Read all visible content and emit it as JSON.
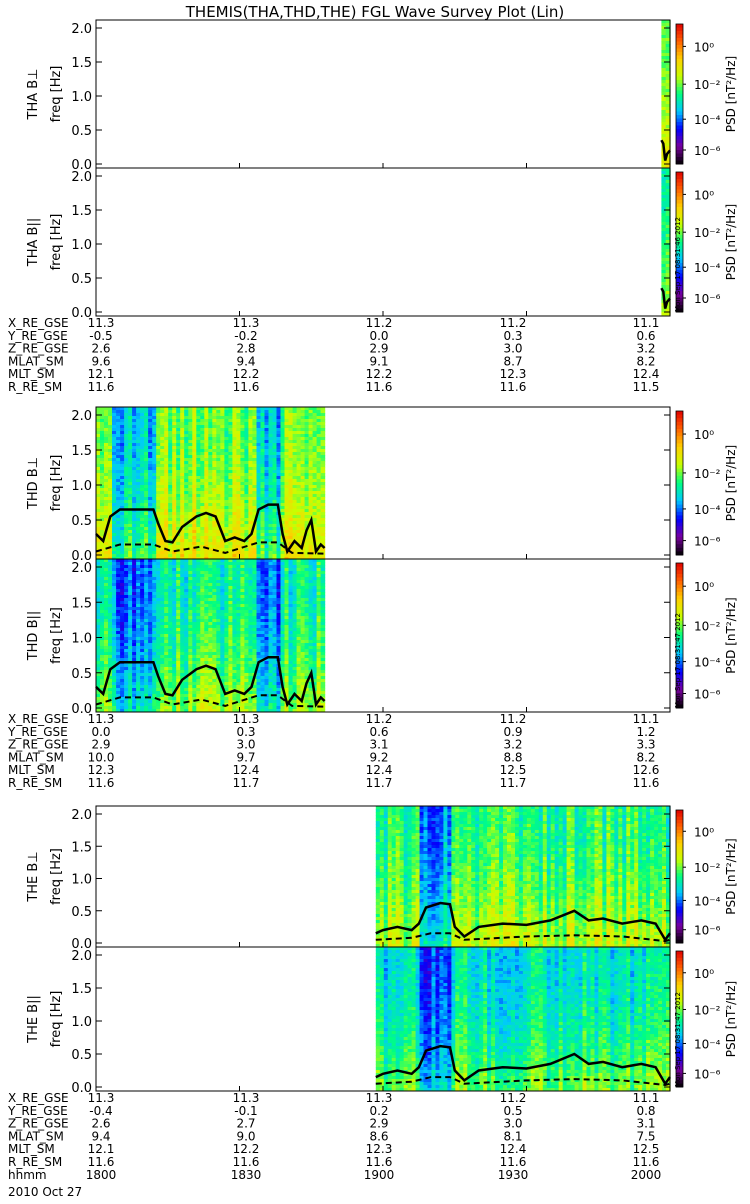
{
  "title": "THEMIS(THA,THD,THE) FGL Wave Survey Plot (Lin)",
  "colorbar": {
    "label": "PSD [nT²/Hz]",
    "ticks": [
      "10⁰",
      "10⁻²",
      "10⁻⁴",
      "10⁻⁶"
    ]
  },
  "panels": [
    {
      "label": "THA B⊥",
      "ylabel": "freq [Hz]",
      "stamp": ""
    },
    {
      "label": "THA B||",
      "ylabel": "freq [Hz]",
      "stamp": "Mon Sep 17 08:31:46 2012"
    },
    {
      "label": "THD B⊥",
      "ylabel": "freq [Hz]",
      "stamp": ""
    },
    {
      "label": "THD B||",
      "ylabel": "freq [Hz]",
      "stamp": "Mon Sep 17 08:31:47 2012"
    },
    {
      "label": "THE B⊥",
      "ylabel": "freq [Hz]",
      "stamp": ""
    },
    {
      "label": "THE B||",
      "ylabel": "freq [Hz]",
      "stamp": "Mon Sep 17 08:31:47 2012"
    }
  ],
  "ephemeris": [
    {
      "rows": [
        {
          "name": "X_RE_GSE",
          "values": [
            "11.3",
            "11.3",
            "11.2",
            "11.2",
            "11.1"
          ]
        },
        {
          "name": "Y_RE_GSE",
          "values": [
            "-0.5",
            "-0.2",
            "0.0",
            "0.3",
            "0.6"
          ]
        },
        {
          "name": "Z_RE_GSE",
          "values": [
            "2.6",
            "2.8",
            "2.9",
            "3.0",
            "3.2"
          ]
        },
        {
          "name": "MLAT_SM",
          "values": [
            "9.6",
            "9.4",
            "9.1",
            "8.7",
            "8.2"
          ]
        },
        {
          "name": "MLT_SM",
          "values": [
            "12.1",
            "12.2",
            "12.2",
            "12.3",
            "12.4"
          ]
        },
        {
          "name": "R_RE_SM",
          "values": [
            "11.6",
            "11.6",
            "11.6",
            "11.6",
            "11.5"
          ]
        }
      ]
    },
    {
      "rows": [
        {
          "name": "X_RE_GSE",
          "values": [
            "11.3",
            "11.3",
            "11.2",
            "11.2",
            "11.1"
          ]
        },
        {
          "name": "Y_RE_GSE",
          "values": [
            "0.0",
            "0.3",
            "0.6",
            "0.9",
            "1.2"
          ]
        },
        {
          "name": "Z_RE_GSE",
          "values": [
            "2.9",
            "3.0",
            "3.1",
            "3.2",
            "3.3"
          ]
        },
        {
          "name": "MLAT_SM",
          "values": [
            "10.0",
            "9.7",
            "9.2",
            "8.8",
            "8.2"
          ]
        },
        {
          "name": "MLT_SM",
          "values": [
            "12.3",
            "12.4",
            "12.4",
            "12.5",
            "12.6"
          ]
        },
        {
          "name": "R_RE_SM",
          "values": [
            "11.6",
            "11.7",
            "11.7",
            "11.7",
            "11.6"
          ]
        }
      ]
    },
    {
      "rows": [
        {
          "name": "X_RE_GSE",
          "values": [
            "11.3",
            "11.3",
            "11.3",
            "11.2",
            "11.1"
          ]
        },
        {
          "name": "Y_RE_GSE",
          "values": [
            "-0.4",
            "-0.1",
            "0.2",
            "0.5",
            "0.8"
          ]
        },
        {
          "name": "Z_RE_GSE",
          "values": [
            "2.6",
            "2.7",
            "2.9",
            "3.0",
            "3.1"
          ]
        },
        {
          "name": "MLAT_SM",
          "values": [
            "9.4",
            "9.0",
            "8.6",
            "8.1",
            "7.5"
          ]
        },
        {
          "name": "MLT_SM",
          "values": [
            "12.1",
            "12.2",
            "12.3",
            "12.4",
            "12.5"
          ]
        },
        {
          "name": "R_RE_SM",
          "values": [
            "11.6",
            "11.6",
            "11.6",
            "11.6",
            "11.6"
          ]
        },
        {
          "name": "hhmm",
          "values": [
            "1800",
            "1830",
            "1900",
            "1930",
            "2000"
          ]
        }
      ]
    }
  ],
  "date_label": "2010 Oct 27",
  "chart_data": {
    "type": "heatmap",
    "title": "THEMIS(THA,THD,THE) FGL Wave Survey Plot (Lin)",
    "xlabel": "hhmm",
    "x_ticks": [
      "1800",
      "1830",
      "1900",
      "1930",
      "2000"
    ],
    "ylabel": "freq [Hz]",
    "ylim": [
      0,
      2.0
    ],
    "y_ticks": [
      "0.0",
      "0.5",
      "1.0",
      "1.5",
      "2.0"
    ],
    "z_scale": "log",
    "z_label": "PSD [nT²/Hz]",
    "z_range": [
      1e-07,
      10
    ],
    "colormap": [
      "#000000",
      "#7a00a0",
      "#0000ff",
      "#00c8ff",
      "#00ff80",
      "#c8ff00",
      "#ffd000",
      "#ff6000",
      "#e00000"
    ],
    "x_range_min": [
      0,
      120
    ],
    "panels": [
      {
        "name": "THA B⊥",
        "data_start_min": 118.2,
        "data_end_min": 120,
        "level": 4.2,
        "solid_curve": [
          [
            118.2,
            0.35
          ],
          [
            118.6,
            0.3
          ],
          [
            119.0,
            0.05
          ],
          [
            119.4,
            0.15
          ],
          [
            120,
            0.2
          ]
        ],
        "dashed_curve": []
      },
      {
        "name": "THA B||",
        "data_start_min": 118.2,
        "data_end_min": 120,
        "level": 3.6,
        "solid_curve": [
          [
            118.2,
            0.35
          ],
          [
            118.6,
            0.3
          ],
          [
            119.0,
            0.05
          ],
          [
            119.4,
            0.15
          ],
          [
            120,
            0.2
          ]
        ],
        "dashed_curve": []
      },
      {
        "name": "THD B⊥",
        "data_start_min": 0,
        "data_end_min": 47.8,
        "level": 4.5,
        "quiet_intervals_min": [
          [
            3.5,
            12.5
          ],
          [
            33.5,
            38.5
          ]
        ],
        "solid_curve": [
          [
            0,
            0.3
          ],
          [
            1.5,
            0.2
          ],
          [
            3,
            0.55
          ],
          [
            5,
            0.65
          ],
          [
            12,
            0.65
          ],
          [
            13,
            0.45
          ],
          [
            14.5,
            0.2
          ],
          [
            16,
            0.18
          ],
          [
            18,
            0.4
          ],
          [
            21,
            0.55
          ],
          [
            23,
            0.6
          ],
          [
            25,
            0.55
          ],
          [
            27,
            0.2
          ],
          [
            29,
            0.25
          ],
          [
            31,
            0.2
          ],
          [
            32.5,
            0.3
          ],
          [
            34,
            0.65
          ],
          [
            36,
            0.72
          ],
          [
            38,
            0.72
          ],
          [
            39,
            0.3
          ],
          [
            40,
            0.05
          ],
          [
            41.5,
            0.2
          ],
          [
            43,
            0.1
          ],
          [
            44,
            0.35
          ],
          [
            45,
            0.5
          ],
          [
            46,
            0.05
          ],
          [
            47,
            0.15
          ],
          [
            47.8,
            0.1
          ]
        ],
        "dashed_curve": [
          [
            0,
            0.05
          ],
          [
            5,
            0.15
          ],
          [
            12,
            0.15
          ],
          [
            16,
            0.05
          ],
          [
            22,
            0.12
          ],
          [
            27,
            0.03
          ],
          [
            34,
            0.18
          ],
          [
            38,
            0.18
          ],
          [
            41,
            0.03
          ],
          [
            47.8,
            0.02
          ]
        ]
      },
      {
        "name": "THD B||",
        "data_start_min": 0,
        "data_end_min": 47.8,
        "level": 3.8,
        "quiet_intervals_min": [
          [
            3.5,
            12.5
          ],
          [
            33.5,
            38.5
          ]
        ],
        "solid_curve": [
          [
            0,
            0.3
          ],
          [
            1.5,
            0.2
          ],
          [
            3,
            0.55
          ],
          [
            5,
            0.65
          ],
          [
            12,
            0.65
          ],
          [
            13,
            0.45
          ],
          [
            14.5,
            0.2
          ],
          [
            16,
            0.18
          ],
          [
            18,
            0.4
          ],
          [
            21,
            0.55
          ],
          [
            23,
            0.6
          ],
          [
            25,
            0.55
          ],
          [
            27,
            0.2
          ],
          [
            29,
            0.25
          ],
          [
            31,
            0.2
          ],
          [
            32.5,
            0.3
          ],
          [
            34,
            0.65
          ],
          [
            36,
            0.72
          ],
          [
            38,
            0.72
          ],
          [
            39,
            0.3
          ],
          [
            40,
            0.05
          ],
          [
            41.5,
            0.2
          ],
          [
            43,
            0.1
          ],
          [
            44,
            0.35
          ],
          [
            45,
            0.5
          ],
          [
            46,
            0.05
          ],
          [
            47,
            0.15
          ],
          [
            47.8,
            0.1
          ]
        ],
        "dashed_curve": [
          [
            0,
            0.05
          ],
          [
            5,
            0.15
          ],
          [
            12,
            0.15
          ],
          [
            16,
            0.05
          ],
          [
            22,
            0.12
          ],
          [
            27,
            0.03
          ],
          [
            34,
            0.18
          ],
          [
            38,
            0.18
          ],
          [
            41,
            0.03
          ],
          [
            47.8,
            0.02
          ]
        ]
      },
      {
        "name": "THE B⊥",
        "data_start_min": 58.5,
        "data_end_min": 120,
        "level": 4.0,
        "quiet_intervals_min": [
          [
            67.5,
            74.5
          ]
        ],
        "solid_curve": [
          [
            58.5,
            0.15
          ],
          [
            60,
            0.2
          ],
          [
            63,
            0.25
          ],
          [
            66,
            0.2
          ],
          [
            67.5,
            0.3
          ],
          [
            69,
            0.55
          ],
          [
            72,
            0.62
          ],
          [
            74,
            0.6
          ],
          [
            75,
            0.25
          ],
          [
            77,
            0.1
          ],
          [
            80,
            0.25
          ],
          [
            85,
            0.3
          ],
          [
            90,
            0.28
          ],
          [
            95,
            0.35
          ],
          [
            100,
            0.5
          ],
          [
            103,
            0.35
          ],
          [
            106,
            0.38
          ],
          [
            110,
            0.3
          ],
          [
            114,
            0.35
          ],
          [
            117,
            0.3
          ],
          [
            119,
            0.05
          ],
          [
            120,
            0.15
          ]
        ],
        "dashed_curve": [
          [
            58.5,
            0.05
          ],
          [
            66,
            0.08
          ],
          [
            70,
            0.15
          ],
          [
            74,
            0.15
          ],
          [
            77,
            0.05
          ],
          [
            90,
            0.1
          ],
          [
            100,
            0.12
          ],
          [
            110,
            0.1
          ],
          [
            119,
            0.03
          ],
          [
            120,
            0.05
          ]
        ]
      },
      {
        "name": "THE B||",
        "data_start_min": 58.5,
        "data_end_min": 120,
        "level": 3.4,
        "quiet_intervals_min": [
          [
            67.5,
            74.5
          ]
        ],
        "solid_curve": [
          [
            58.5,
            0.15
          ],
          [
            60,
            0.2
          ],
          [
            63,
            0.25
          ],
          [
            66,
            0.2
          ],
          [
            67.5,
            0.3
          ],
          [
            69,
            0.55
          ],
          [
            72,
            0.62
          ],
          [
            74,
            0.6
          ],
          [
            75,
            0.25
          ],
          [
            77,
            0.1
          ],
          [
            80,
            0.25
          ],
          [
            85,
            0.3
          ],
          [
            90,
            0.28
          ],
          [
            95,
            0.35
          ],
          [
            100,
            0.5
          ],
          [
            103,
            0.35
          ],
          [
            106,
            0.38
          ],
          [
            110,
            0.3
          ],
          [
            114,
            0.35
          ],
          [
            117,
            0.3
          ],
          [
            119,
            0.05
          ],
          [
            120,
            0.15
          ]
        ],
        "dashed_curve": [
          [
            58.5,
            0.05
          ],
          [
            66,
            0.08
          ],
          [
            70,
            0.15
          ],
          [
            74,
            0.15
          ],
          [
            77,
            0.05
          ],
          [
            90,
            0.1
          ],
          [
            100,
            0.12
          ],
          [
            110,
            0.1
          ],
          [
            119,
            0.03
          ],
          [
            120,
            0.05
          ]
        ]
      }
    ]
  }
}
